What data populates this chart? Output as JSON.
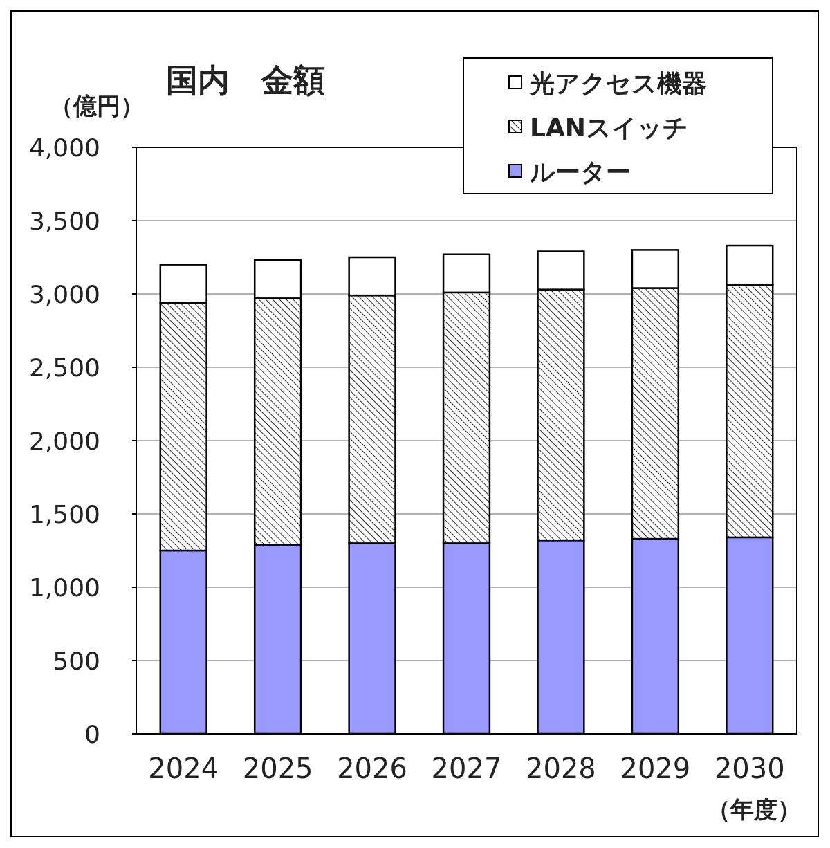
{
  "chart_data": {
    "type": "bar",
    "title": "国内　金額",
    "ylabel": "（億円）",
    "xlabel": "（年度）",
    "categories": [
      "2024",
      "2025",
      "2026",
      "2027",
      "2028",
      "2029",
      "2030"
    ],
    "series": [
      {
        "name": "ルーター",
        "color": "#9999ff",
        "values": [
          1250,
          1290,
          1300,
          1300,
          1320,
          1330,
          1340
        ]
      },
      {
        "name": "LANスイッチ",
        "color": "#000000",
        "values": [
          1690,
          1680,
          1690,
          1710,
          1710,
          1710,
          1720
        ]
      },
      {
        "name": "光アクセス機器",
        "color": "#ffffff",
        "values": [
          260,
          260,
          260,
          260,
          260,
          260,
          270
        ]
      }
    ],
    "stacked": true,
    "ylim": [
      0,
      4000
    ],
    "yticks": [
      0,
      500,
      {
        "value": 1000,
        "label": "1,000"
      },
      {
        "value": 1500,
        "label": "1,500"
      },
      {
        "value": 2000,
        "label": "2,000"
      },
      {
        "value": 2500,
        "label": "2,500"
      },
      {
        "value": 3000,
        "label": "3,000"
      },
      {
        "value": 3500,
        "label": "3,500"
      },
      {
        "value": 4000,
        "label": "4,000"
      }
    ],
    "grid": "y",
    "legend": "top right"
  }
}
